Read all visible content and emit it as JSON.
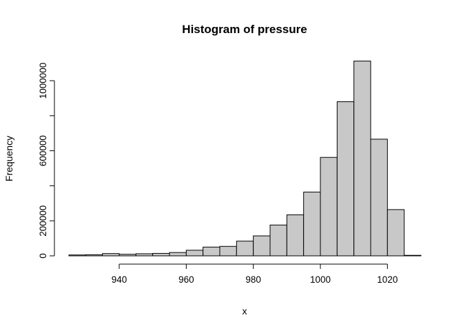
{
  "chart_data": {
    "type": "bar",
    "title": "Histogram of pressure",
    "xlabel": "x",
    "ylabel": "Frequency",
    "bin_width": 5,
    "bin_starts": [
      925,
      930,
      935,
      940,
      945,
      950,
      955,
      960,
      965,
      970,
      975,
      980,
      985,
      990,
      995,
      1000,
      1005,
      1010,
      1015,
      1020,
      1025
    ],
    "values": [
      5000,
      6000,
      13000,
      9000,
      12000,
      14000,
      19000,
      32000,
      50000,
      54000,
      84000,
      114000,
      176000,
      234000,
      364000,
      562000,
      880000,
      1112000,
      666000,
      264000,
      3000
    ],
    "xlim": [
      925,
      1030
    ],
    "ylim": [
      0,
      1100000
    ],
    "x_ticks": [
      940,
      960,
      980,
      1000,
      1020
    ],
    "x_tick_labels": [
      "940",
      "960",
      "980",
      "1000",
      "1020"
    ],
    "y_ticks": [
      0,
      200000,
      600000,
      1000000
    ],
    "y_tick_labels": [
      "0",
      "200000",
      "600000",
      "1000000"
    ],
    "y_minor_ticks": [
      400000,
      800000
    ],
    "grid": false,
    "legend": "none",
    "colors": {
      "bar_fill": "#c8c8c8",
      "bar_stroke": "#000000"
    }
  }
}
